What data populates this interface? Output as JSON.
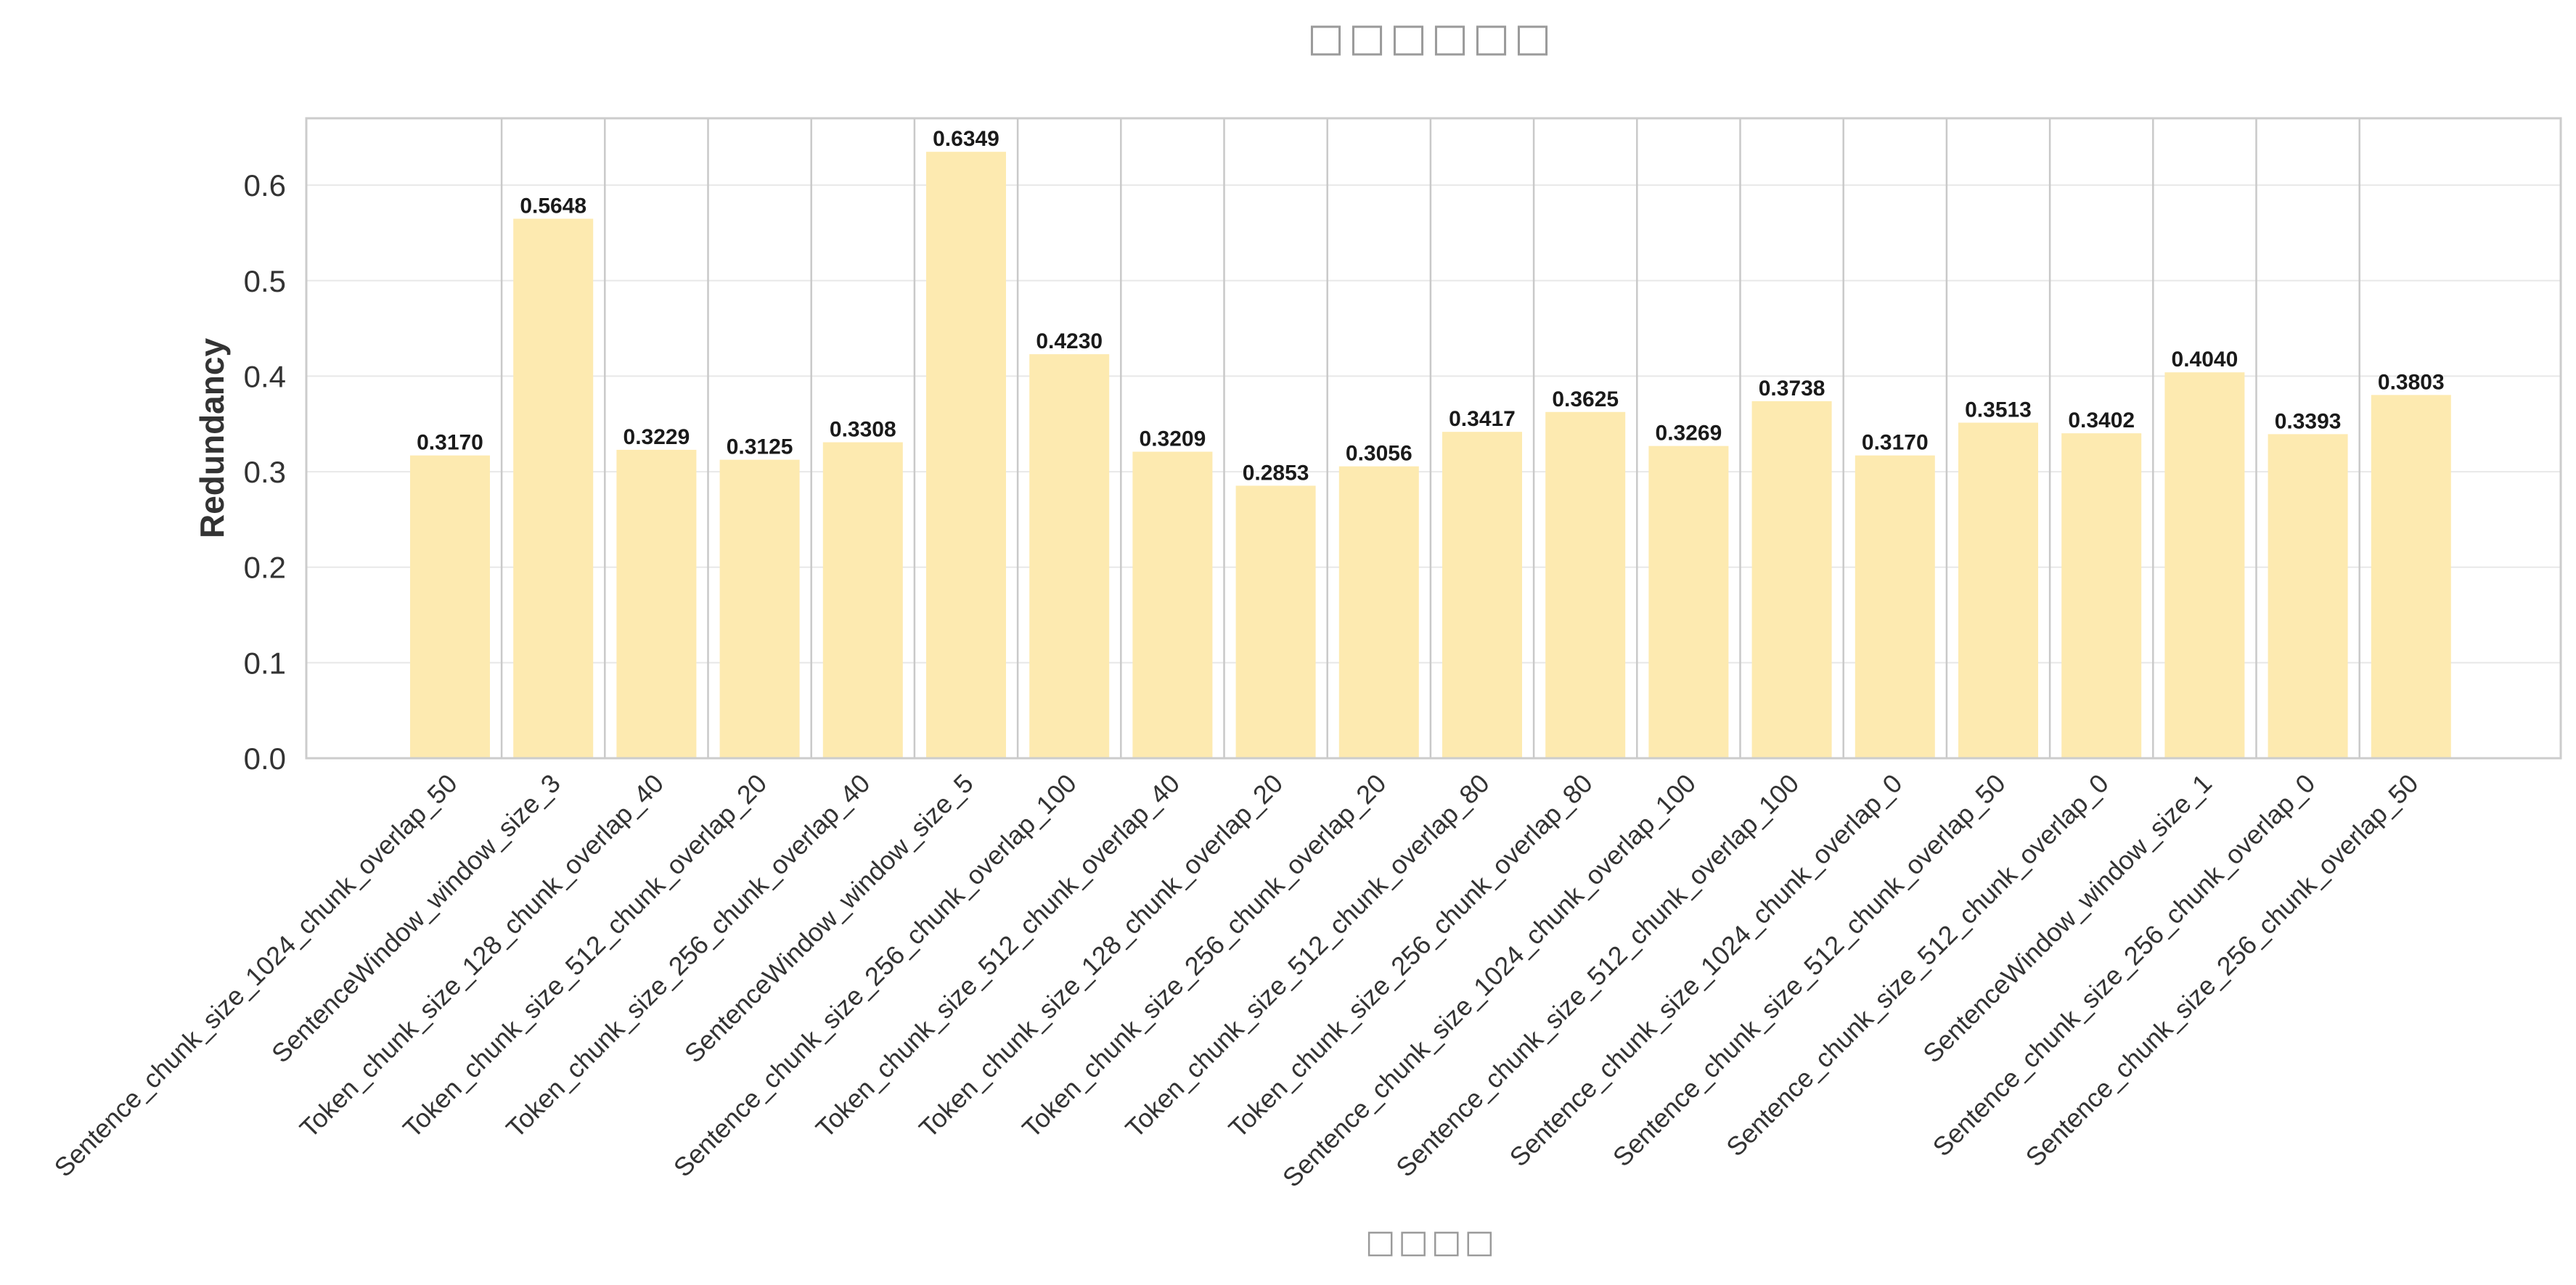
{
  "chart_data": {
    "type": "bar",
    "title": "□□□□□□",
    "xlabel": "□□□□",
    "ylabel": "Redundancy",
    "ylim": [
      0,
      0.67
    ],
    "yticks": [
      0.0,
      0.1,
      0.2,
      0.3,
      0.4,
      0.5,
      0.6
    ],
    "ytick_labels": [
      "0.0",
      "0.1",
      "0.2",
      "0.3",
      "0.4",
      "0.5",
      "0.6"
    ],
    "grid": true,
    "categories": [
      "Sentence_chunk_size_1024_chunk_overlap_50",
      "SentenceWindow_window_size_3",
      "Token_chunk_size_128_chunk_overlap_40",
      "Token_chunk_size_512_chunk_overlap_20",
      "Token_chunk_size_256_chunk_overlap_40",
      "SentenceWindow_window_size_5",
      "Sentence_chunk_size_256_chunk_overlap_100",
      "Token_chunk_size_512_chunk_overlap_40",
      "Token_chunk_size_128_chunk_overlap_20",
      "Token_chunk_size_256_chunk_overlap_20",
      "Token_chunk_size_512_chunk_overlap_80",
      "Token_chunk_size_256_chunk_overlap_80",
      "Sentence_chunk_size_1024_chunk_overlap_100",
      "Sentence_chunk_size_512_chunk_overlap_100",
      "Sentence_chunk_size_1024_chunk_overlap_0",
      "Sentence_chunk_size_512_chunk_overlap_50",
      "Sentence_chunk_size_512_chunk_overlap_0",
      "SentenceWindow_window_size_1",
      "Sentence_chunk_size_256_chunk_overlap_0",
      "Sentence_chunk_size_256_chunk_overlap_50"
    ],
    "values": [
      0.317,
      0.5648,
      0.3229,
      0.3125,
      0.3308,
      0.6349,
      0.423,
      0.3209,
      0.2853,
      0.3056,
      0.3417,
      0.3625,
      0.3269,
      0.3738,
      0.317,
      0.3513,
      0.3402,
      0.404,
      0.3393,
      0.3803
    ],
    "value_labels": [
      "0.3170",
      "0.5648",
      "0.3229",
      "0.3125",
      "0.3308",
      "0.6349",
      "0.4230",
      "0.3209",
      "0.2853",
      "0.3056",
      "0.3417",
      "0.3625",
      "0.3269",
      "0.3738",
      "0.3170",
      "0.3513",
      "0.3402",
      "0.4040",
      "0.3393",
      "0.3803"
    ],
    "colors": {
      "bar": "#fdeab0",
      "grid": "#e8e8e8",
      "vline": "#c9c9c9",
      "frame": "#cccccc",
      "text": "#333333",
      "label": "#1a1a1a",
      "placeholder": "#9a9a9a"
    }
  }
}
